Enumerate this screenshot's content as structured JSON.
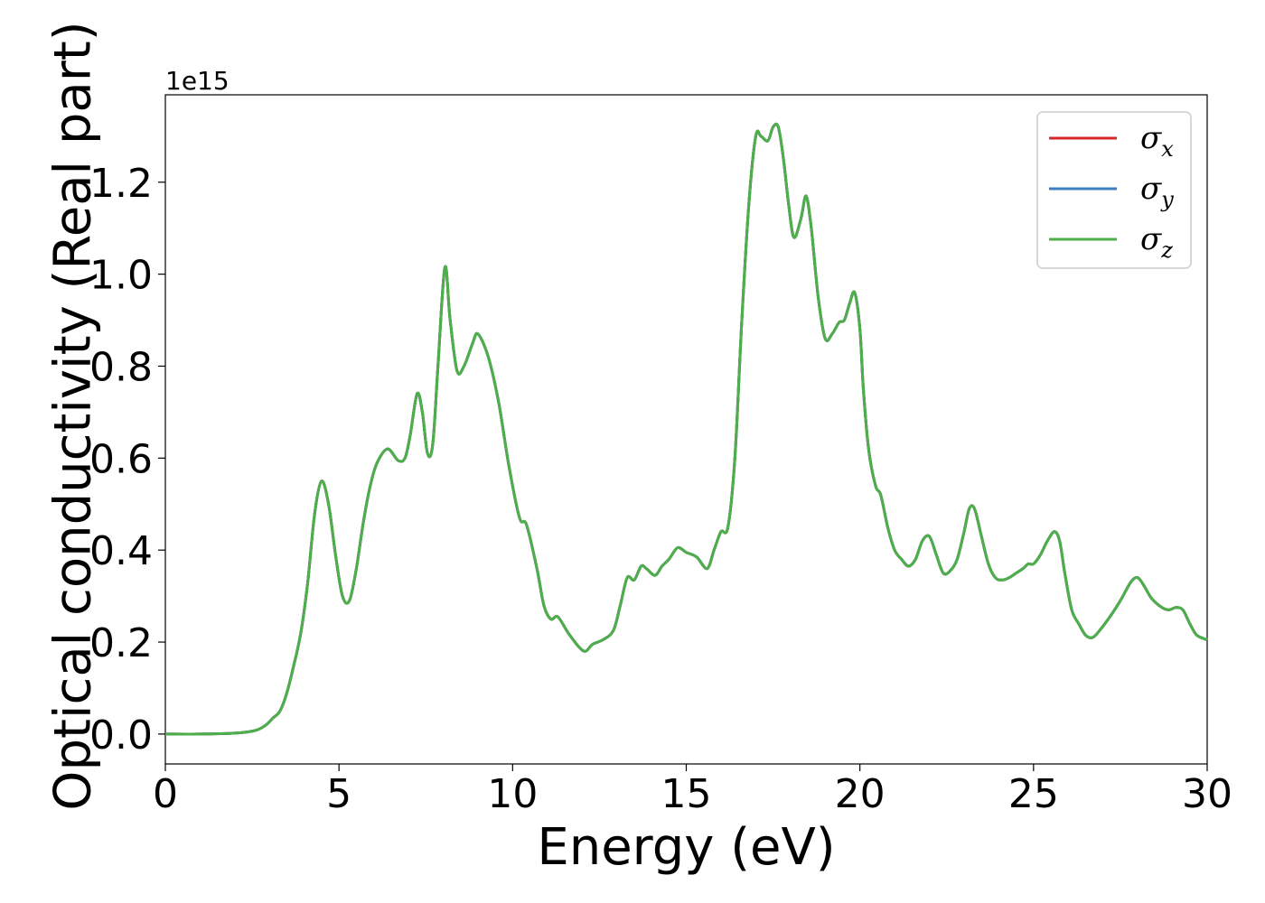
{
  "chart_data": {
    "type": "line",
    "xlabel": "Energy (eV)",
    "ylabel": "Optical conductivity (Real part)",
    "y_offset_label": "1e15",
    "y_scale": 1000000000000000.0,
    "xlim": [
      0,
      30
    ],
    "ylim": [
      -0.065,
      1.39
    ],
    "x_ticks": [
      0,
      5,
      10,
      15,
      20,
      25,
      30
    ],
    "x_tick_labels": [
      "0",
      "5",
      "10",
      "15",
      "20",
      "25",
      "30"
    ],
    "y_ticks": [
      0.0,
      0.2,
      0.4,
      0.6,
      0.8,
      1.0,
      1.2
    ],
    "y_tick_labels": [
      "0.0",
      "0.2",
      "0.4",
      "0.6",
      "0.8",
      "1.0",
      "1.2"
    ],
    "grid": false,
    "legend_position": "top-right",
    "legend": [
      {
        "symbol": "σ",
        "subscript": "x",
        "color": "#d62728"
      },
      {
        "symbol": "σ",
        "subscript": "y",
        "color": "#3a7ebf"
      },
      {
        "symbol": "σ",
        "subscript": "z",
        "color": "#4daf4a"
      }
    ],
    "x": [
      0,
      1,
      2,
      2.6,
      2.9,
      3.1,
      3.3,
      3.5,
      3.7,
      3.9,
      4.1,
      4.3,
      4.5,
      4.7,
      4.9,
      5.1,
      5.3,
      5.5,
      5.7,
      5.9,
      6.1,
      6.4,
      6.7,
      6.9,
      7.05,
      7.25,
      7.4,
      7.55,
      7.7,
      7.85,
      8.05,
      8.2,
      8.4,
      8.6,
      8.85,
      9.0,
      9.3,
      9.6,
      9.9,
      10.2,
      10.4,
      10.7,
      10.9,
      11.1,
      11.3,
      11.6,
      11.9,
      12.1,
      12.3,
      12.6,
      12.9,
      13.1,
      13.3,
      13.5,
      13.7,
      13.85,
      14.1,
      14.3,
      14.5,
      14.75,
      15.0,
      15.3,
      15.6,
      15.8,
      16.0,
      16.2,
      16.4,
      16.6,
      16.8,
      17.0,
      17.15,
      17.35,
      17.5,
      17.65,
      17.8,
      17.95,
      18.1,
      18.3,
      18.45,
      18.6,
      18.8,
      19.0,
      19.2,
      19.4,
      19.55,
      19.7,
      19.85,
      20.0,
      20.1,
      20.25,
      20.45,
      20.6,
      20.8,
      21.0,
      21.2,
      21.4,
      21.6,
      21.8,
      22.0,
      22.2,
      22.4,
      22.6,
      22.8,
      23.0,
      23.15,
      23.3,
      23.5,
      23.7,
      23.9,
      24.1,
      24.3,
      24.5,
      24.7,
      24.85,
      25.0,
      25.2,
      25.4,
      25.6,
      25.75,
      25.9,
      26.1,
      26.3,
      26.5,
      26.7,
      26.9,
      27.2,
      27.5,
      27.8,
      28.0,
      28.2,
      28.4,
      28.7,
      28.9,
      29.1,
      29.3,
      29.5,
      29.7,
      30.0
    ],
    "series": [
      {
        "values": [
          0,
          0,
          0.002,
          0.008,
          0.02,
          0.035,
          0.05,
          0.09,
          0.15,
          0.22,
          0.33,
          0.48,
          0.55,
          0.5,
          0.39,
          0.3,
          0.29,
          0.36,
          0.46,
          0.54,
          0.59,
          0.62,
          0.595,
          0.6,
          0.65,
          0.74,
          0.7,
          0.61,
          0.63,
          0.8,
          1.015,
          0.9,
          0.79,
          0.8,
          0.85,
          0.87,
          0.82,
          0.72,
          0.58,
          0.47,
          0.455,
          0.36,
          0.28,
          0.25,
          0.255,
          0.22,
          0.19,
          0.18,
          0.195,
          0.205,
          0.225,
          0.28,
          0.34,
          0.335,
          0.365,
          0.36,
          0.345,
          0.365,
          0.38,
          0.405,
          0.395,
          0.385,
          0.36,
          0.4,
          0.44,
          0.45,
          0.6,
          0.9,
          1.15,
          1.3,
          1.3,
          1.29,
          1.32,
          1.32,
          1.25,
          1.15,
          1.08,
          1.12,
          1.17,
          1.1,
          0.95,
          0.86,
          0.87,
          0.895,
          0.9,
          0.935,
          0.96,
          0.88,
          0.75,
          0.62,
          0.54,
          0.52,
          0.45,
          0.4,
          0.38,
          0.365,
          0.38,
          0.42,
          0.43,
          0.39,
          0.35,
          0.355,
          0.38,
          0.44,
          0.49,
          0.49,
          0.43,
          0.37,
          0.34,
          0.335,
          0.34,
          0.35,
          0.36,
          0.37,
          0.37,
          0.39,
          0.42,
          0.44,
          0.42,
          0.35,
          0.27,
          0.24,
          0.215,
          0.21,
          0.225,
          0.255,
          0.29,
          0.33,
          0.34,
          0.32,
          0.295,
          0.275,
          0.27,
          0.275,
          0.27,
          0.24,
          0.215,
          0.205
        ]
      }
    ]
  }
}
